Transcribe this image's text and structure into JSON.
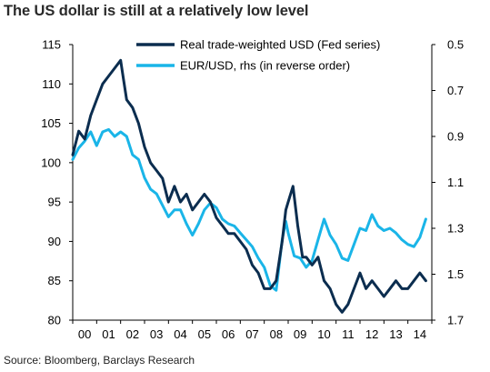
{
  "chart_data": {
    "type": "line",
    "title": "The US dollar is still at a relatively low level",
    "source": "Source: Bloomberg, Barclays Research",
    "xlim": [
      2000,
      2015
    ],
    "xtick_labels": [
      "00",
      "01",
      "02",
      "03",
      "04",
      "05",
      "06",
      "07",
      "08",
      "09",
      "10",
      "11",
      "12",
      "13",
      "14"
    ],
    "ylim_left": [
      80,
      115
    ],
    "yticks_left": [
      "80",
      "85",
      "90",
      "95",
      "100",
      "105",
      "110",
      "115"
    ],
    "ylim_right_reversed": [
      0.5,
      1.7
    ],
    "yticks_right": [
      "0.5",
      "0.7",
      "0.9",
      "1.1",
      "1.3",
      "1.5",
      "1.7"
    ],
    "legend_position": "top-right",
    "colors": {
      "usd": "#0b2d4f",
      "eur": "#1ab5e8"
    },
    "series": [
      {
        "name": "Real trade-weighted USD (Fed series)",
        "axis": "left",
        "x": [
          2000.0,
          2000.25,
          2000.5,
          2000.75,
          2001.0,
          2001.25,
          2001.5,
          2001.75,
          2002.0,
          2002.1,
          2002.25,
          2002.5,
          2002.75,
          2003.0,
          2003.25,
          2003.5,
          2003.75,
          2004.0,
          2004.25,
          2004.5,
          2004.75,
          2005.0,
          2005.25,
          2005.5,
          2005.75,
          2006.0,
          2006.25,
          2006.5,
          2006.75,
          2007.0,
          2007.25,
          2007.5,
          2007.75,
          2008.0,
          2008.25,
          2008.5,
          2008.75,
          2008.9,
          2009.0,
          2009.2,
          2009.4,
          2009.6,
          2009.75,
          2010.0,
          2010.25,
          2010.5,
          2010.75,
          2011.0,
          2011.25,
          2011.5,
          2011.75,
          2012.0,
          2012.25,
          2012.5,
          2012.75,
          2013.0,
          2013.25,
          2013.5,
          2013.75,
          2014.0,
          2014.25,
          2014.5,
          2014.75
        ],
        "values": [
          101,
          104,
          103,
          106,
          108,
          110,
          111,
          112,
          113,
          111,
          108,
          107,
          105,
          102,
          100,
          99,
          98,
          95,
          97,
          95,
          96,
          94,
          95,
          96,
          95,
          93,
          92,
          91,
          91,
          90,
          89,
          87,
          86,
          84,
          84,
          85,
          90,
          94,
          95,
          97,
          92,
          88,
          88,
          87,
          88,
          85,
          84,
          82,
          81,
          82,
          84,
          86,
          84,
          85,
          84,
          83,
          84,
          85,
          84,
          84,
          85,
          86,
          85
        ]
      },
      {
        "name": "EUR/USD, rhs (in reverse order)",
        "axis": "right",
        "x": [
          2000.0,
          2000.25,
          2000.5,
          2000.75,
          2001.0,
          2001.25,
          2001.5,
          2001.75,
          2002.0,
          2002.25,
          2002.5,
          2002.75,
          2003.0,
          2003.25,
          2003.5,
          2003.75,
          2004.0,
          2004.25,
          2004.5,
          2004.75,
          2005.0,
          2005.25,
          2005.5,
          2005.75,
          2006.0,
          2006.25,
          2006.5,
          2006.75,
          2007.0,
          2007.25,
          2007.5,
          2007.75,
          2008.0,
          2008.25,
          2008.5,
          2008.75,
          2008.9,
          2009.0,
          2009.25,
          2009.5,
          2009.75,
          2010.0,
          2010.25,
          2010.5,
          2010.75,
          2011.0,
          2011.25,
          2011.5,
          2011.75,
          2012.0,
          2012.25,
          2012.5,
          2012.75,
          2013.0,
          2013.25,
          2013.5,
          2013.75,
          2014.0,
          2014.25,
          2014.5,
          2014.75
        ],
        "values": [
          1.0,
          0.95,
          0.92,
          0.88,
          0.94,
          0.88,
          0.87,
          0.9,
          0.88,
          0.9,
          0.98,
          1.0,
          1.08,
          1.13,
          1.15,
          1.2,
          1.25,
          1.22,
          1.22,
          1.28,
          1.33,
          1.28,
          1.22,
          1.19,
          1.21,
          1.26,
          1.28,
          1.29,
          1.32,
          1.35,
          1.38,
          1.43,
          1.47,
          1.55,
          1.57,
          1.35,
          1.27,
          1.32,
          1.42,
          1.43,
          1.47,
          1.44,
          1.35,
          1.26,
          1.33,
          1.37,
          1.43,
          1.44,
          1.37,
          1.3,
          1.31,
          1.24,
          1.29,
          1.31,
          1.3,
          1.32,
          1.35,
          1.37,
          1.38,
          1.34,
          1.26
        ]
      }
    ]
  }
}
